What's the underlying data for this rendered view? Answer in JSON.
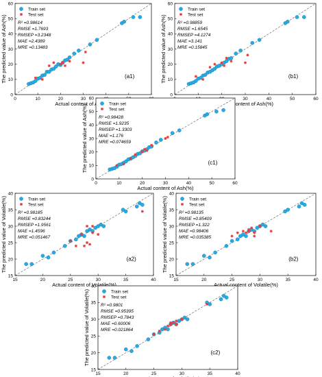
{
  "legend": {
    "train": "Train set",
    "test": "Test set"
  },
  "colors": {
    "train": "#29abe2",
    "train_edge": "#0f76a8",
    "test": "#e83c3c"
  },
  "chart_data": [
    {
      "id": "a1",
      "type": "scatter",
      "panel_label": "(a1)",
      "xlabel": "Actual content of Ash(%)",
      "ylabel": "The predicted value of Ash(%)",
      "xlim": [
        0,
        60
      ],
      "ylim": [
        0,
        60
      ],
      "xticks": [
        0,
        10,
        20,
        30,
        40,
        50,
        60
      ],
      "yticks": [
        0,
        10,
        20,
        30,
        40,
        50,
        60
      ],
      "metrics": [
        "R² =0.98614",
        "RMSE =1.7693",
        "RMSEP =3.2348",
        "MAE =2.4389",
        "MRE =0.13483"
      ],
      "series": [
        {
          "name": "Train set",
          "kind": "train",
          "points": [
            [
              6,
              7
            ],
            [
              7,
              7.5
            ],
            [
              8,
              8
            ],
            [
              9,
              9
            ],
            [
              10,
              10.5
            ],
            [
              11,
              11
            ],
            [
              12,
              12.5
            ],
            [
              13,
              13
            ],
            [
              14,
              15
            ],
            [
              15,
              15
            ],
            [
              16,
              16.5
            ],
            [
              17,
              17
            ],
            [
              18,
              18.5
            ],
            [
              19,
              20
            ],
            [
              20,
              19.5
            ],
            [
              21,
              21
            ],
            [
              22,
              22.5
            ],
            [
              23,
              23
            ],
            [
              24,
              24.5
            ],
            [
              26,
              27
            ],
            [
              28,
              29
            ],
            [
              33,
              33
            ],
            [
              36,
              36
            ],
            [
              47,
              47
            ],
            [
              48,
              48
            ],
            [
              52,
              51
            ],
            [
              55,
              51
            ]
          ]
        },
        {
          "name": "Test set",
          "kind": "test",
          "points": [
            [
              9,
              11
            ],
            [
              12,
              10
            ],
            [
              15,
              19
            ],
            [
              17,
              21
            ],
            [
              20,
              20
            ],
            [
              21,
              21
            ],
            [
              22,
              19
            ],
            [
              24,
              22
            ],
            [
              30,
              21
            ],
            [
              31,
              28
            ]
          ]
        }
      ]
    },
    {
      "id": "b1",
      "type": "scatter",
      "panel_label": "(b1)",
      "xlabel": "Actual content of Ash(%)",
      "ylabel": "The predicted value of Ash(%)",
      "xlim": [
        0,
        60
      ],
      "ylim": [
        0,
        60
      ],
      "xticks": [
        0,
        10,
        20,
        30,
        40,
        50,
        60
      ],
      "yticks": [
        0,
        10,
        20,
        30,
        40,
        50,
        60
      ],
      "metrics": [
        "R² =0.98859",
        "RMSE =1.6545",
        "RMSEP =4.1274",
        "MAE =3.141",
        "MRE =0.15845"
      ],
      "series": [
        {
          "name": "Train set",
          "kind": "train",
          "points": [
            [
              6,
              7
            ],
            [
              7,
              7.5
            ],
            [
              8,
              8
            ],
            [
              9,
              9
            ],
            [
              10,
              10.5
            ],
            [
              11,
              11
            ],
            [
              12,
              12.5
            ],
            [
              13,
              13
            ],
            [
              14,
              14.5
            ],
            [
              15,
              15
            ],
            [
              16,
              16
            ],
            [
              17,
              17
            ],
            [
              18,
              18.5
            ],
            [
              19,
              19
            ],
            [
              20,
              20
            ],
            [
              21,
              21
            ],
            [
              22,
              22
            ],
            [
              23,
              23.5
            ],
            [
              24,
              24
            ],
            [
              26,
              27
            ],
            [
              28,
              29
            ],
            [
              33,
              34
            ],
            [
              36,
              36
            ],
            [
              47,
              47
            ],
            [
              48,
              48
            ],
            [
              52,
              51
            ],
            [
              55,
              51
            ]
          ]
        },
        {
          "name": "Test set",
          "kind": "test",
          "points": [
            [
              9,
              12
            ],
            [
              12,
              10
            ],
            [
              15,
              18
            ],
            [
              17,
              20
            ],
            [
              20,
              21
            ],
            [
              21,
              19
            ],
            [
              22,
              24
            ],
            [
              24,
              22
            ],
            [
              30,
              21
            ],
            [
              31,
              26
            ]
          ]
        }
      ]
    },
    {
      "id": "c1",
      "type": "scatter",
      "panel_label": "(c1)",
      "xlabel": "Actual content of Ash(%)",
      "ylabel": "The predicted value of Ash(%)",
      "xlim": [
        0,
        60
      ],
      "ylim": [
        0,
        60
      ],
      "xticks": [
        0,
        10,
        20,
        30,
        40,
        50,
        60
      ],
      "yticks": [
        0,
        10,
        20,
        30,
        40,
        50,
        60
      ],
      "metrics": [
        "R² =0.98428",
        "RMSE =1.9235",
        "RMSEP =1.3303",
        "MAE =1.176",
        "MRE =0.074659"
      ],
      "series": [
        {
          "name": "Train set",
          "kind": "train",
          "points": [
            [
              6,
              7
            ],
            [
              7,
              7.5
            ],
            [
              8,
              8
            ],
            [
              9,
              9
            ],
            [
              10,
              10.5
            ],
            [
              11,
              11
            ],
            [
              12,
              12
            ],
            [
              13,
              13
            ],
            [
              14,
              14.5
            ],
            [
              15,
              15
            ],
            [
              16,
              16
            ],
            [
              17,
              17
            ],
            [
              18,
              18.5
            ],
            [
              19,
              19
            ],
            [
              20,
              20.5
            ],
            [
              21,
              21
            ],
            [
              22,
              22
            ],
            [
              23,
              23.5
            ],
            [
              24,
              24
            ],
            [
              26,
              27
            ],
            [
              28,
              29
            ],
            [
              33,
              34
            ],
            [
              36,
              36
            ],
            [
              47,
              47
            ],
            [
              48,
              48
            ],
            [
              52,
              50
            ],
            [
              55,
              51
            ]
          ]
        },
        {
          "name": "Test set",
          "kind": "test",
          "points": [
            [
              9,
              10
            ],
            [
              12,
              11
            ],
            [
              15,
              15
            ],
            [
              17,
              18
            ],
            [
              20,
              20
            ],
            [
              21,
              22
            ],
            [
              22,
              21
            ],
            [
              24,
              25
            ],
            [
              30,
              30
            ],
            [
              31,
              31
            ]
          ]
        }
      ]
    },
    {
      "id": "a2",
      "type": "scatter",
      "panel_label": "(a2)",
      "xlabel": "Actual content of Volatile(%)",
      "ylabel": "The predicted value of Volatile(%)",
      "xlim": [
        15,
        40
      ],
      "ylim": [
        15,
        40
      ],
      "xticks": [
        15,
        20,
        25,
        30,
        35,
        40
      ],
      "yticks": [
        15,
        20,
        25,
        30,
        35,
        40
      ],
      "metrics": [
        "R² =0.98185",
        "RMSE =0.83244",
        "RMSEP =1.9561",
        "MAE =1.4596",
        "MRE =0.051467"
      ],
      "series": [
        {
          "name": "Train set",
          "kind": "train",
          "points": [
            [
              17,
              18.5
            ],
            [
              18,
              18.5
            ],
            [
              20,
              21
            ],
            [
              21,
              20.5
            ],
            [
              22,
              22
            ],
            [
              24,
              24
            ],
            [
              25,
              25.5
            ],
            [
              26,
              26
            ],
            [
              26.5,
              27
            ],
            [
              27,
              27.5
            ],
            [
              27.5,
              27
            ],
            [
              28,
              28.5
            ],
            [
              28.5,
              29
            ],
            [
              29,
              28.5
            ],
            [
              29.5,
              29.5
            ],
            [
              30,
              30
            ],
            [
              30.5,
              30.5
            ],
            [
              31,
              30
            ],
            [
              34.5,
              35
            ],
            [
              35,
              34.5
            ],
            [
              37,
              36
            ],
            [
              37.5,
              37
            ],
            [
              38,
              36.5
            ]
          ]
        },
        {
          "name": "Test set",
          "kind": "test",
          "points": [
            [
              25,
              25.5
            ],
            [
              26,
              24
            ],
            [
              27,
              27.5
            ],
            [
              27.5,
              24
            ],
            [
              28,
              25
            ],
            [
              28,
              30
            ],
            [
              28.5,
              24.5
            ],
            [
              29,
              28
            ],
            [
              29,
              30
            ],
            [
              30,
              27.5
            ],
            [
              38,
              34.5
            ]
          ]
        }
      ]
    },
    {
      "id": "b2",
      "type": "scatter",
      "panel_label": "(b2)",
      "xlabel": "Actual content of Volatile(%)",
      "ylabel": "The predicted value of Volatile(%)",
      "xlim": [
        15,
        40
      ],
      "ylim": [
        15,
        40
      ],
      "xticks": [
        15,
        20,
        25,
        30,
        35,
        40
      ],
      "yticks": [
        15,
        20,
        25,
        30,
        35,
        40
      ],
      "metrics": [
        "R² =0.98135",
        "RMSE =0.85409",
        "RMSEP =1.322",
        "MAE =0.98406",
        "MRE =0.035385"
      ],
      "series": [
        {
          "name": "Train set",
          "kind": "train",
          "points": [
            [
              17,
              18.5
            ],
            [
              18,
              18.5
            ],
            [
              20,
              21
            ],
            [
              21,
              20.5
            ],
            [
              22,
              22
            ],
            [
              24,
              24
            ],
            [
              25,
              25.5
            ],
            [
              26,
              26
            ],
            [
              26.5,
              27
            ],
            [
              27,
              27.5
            ],
            [
              27.5,
              27
            ],
            [
              28,
              28.5
            ],
            [
              28.5,
              29
            ],
            [
              29,
              28.5
            ],
            [
              29.5,
              29.5
            ],
            [
              30,
              30
            ],
            [
              30.5,
              30.5
            ],
            [
              31,
              30
            ],
            [
              34.5,
              34.5
            ],
            [
              35,
              35
            ],
            [
              37,
              36
            ],
            [
              37.5,
              37
            ],
            [
              38,
              36.5
            ]
          ]
        },
        {
          "name": "Test set",
          "kind": "test",
          "points": [
            [
              25,
              27
            ],
            [
              26,
              28
            ],
            [
              27,
              28.5
            ],
            [
              27.5,
              28
            ],
            [
              28,
              28.5
            ],
            [
              28,
              29
            ],
            [
              28.5,
              29.5
            ],
            [
              29,
              27
            ],
            [
              29,
              28
            ],
            [
              30,
              30
            ],
            [
              32,
              28.5
            ]
          ]
        }
      ]
    },
    {
      "id": "c2",
      "type": "scatter",
      "panel_label": "(c2)",
      "xlabel": "Actual content of Volatile(%)",
      "ylabel": "The predicted value of Volatile(%)",
      "xlim": [
        15,
        40
      ],
      "ylim": [
        15,
        40
      ],
      "xticks": [
        15,
        20,
        25,
        30,
        35,
        40
      ],
      "yticks": [
        15,
        20,
        25,
        30,
        35,
        40
      ],
      "metrics": [
        "R² =0.9801",
        "RMSE =0.95395",
        "RMSEP =0.7843",
        "MAE =0.60006",
        "MRE =0.021864"
      ],
      "series": [
        {
          "name": "Train set",
          "kind": "train",
          "points": [
            [
              17,
              18.5
            ],
            [
              18,
              18.5
            ],
            [
              20,
              21
            ],
            [
              21,
              20.5
            ],
            [
              22,
              22
            ],
            [
              24,
              24
            ],
            [
              25,
              25.5
            ],
            [
              26,
              26
            ],
            [
              26.5,
              27
            ],
            [
              27,
              27.5
            ],
            [
              27.5,
              27
            ],
            [
              28,
              28.5
            ],
            [
              28.5,
              29
            ],
            [
              29,
              28.5
            ],
            [
              29.5,
              29.5
            ],
            [
              30,
              30
            ],
            [
              30.5,
              30.5
            ],
            [
              31,
              30
            ],
            [
              34.5,
              35
            ],
            [
              35,
              34.5
            ],
            [
              37,
              36
            ],
            [
              37.5,
              37
            ],
            [
              38,
              36.5
            ]
          ]
        },
        {
          "name": "Test set",
          "kind": "test",
          "points": [
            [
              25,
              25.5
            ],
            [
              26,
              26.5
            ],
            [
              27,
              27
            ],
            [
              27.5,
              28
            ],
            [
              28,
              28.5
            ],
            [
              28,
              29
            ],
            [
              28.5,
              29
            ],
            [
              29,
              29.5
            ],
            [
              29,
              28.5
            ],
            [
              30,
              30
            ],
            [
              34.5,
              34.5
            ]
          ]
        }
      ]
    }
  ]
}
